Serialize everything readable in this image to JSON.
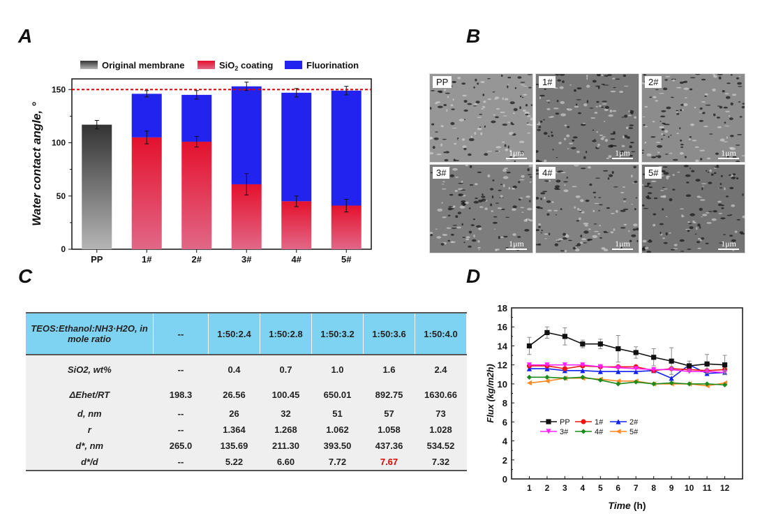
{
  "panels": {
    "a": "A",
    "b": "B",
    "c": "C",
    "d": "D"
  },
  "chart_data": [
    {
      "type": "bar",
      "stacked": true,
      "title": "",
      "xlabel": "",
      "ylabel": "Water contact angle, °",
      "ylim": [
        0,
        160
      ],
      "yticks": [
        0,
        50,
        100,
        150
      ],
      "categories": [
        "PP",
        "1#",
        "2#",
        "3#",
        "4#",
        "5#"
      ],
      "legend": [
        {
          "name": "Original membrane",
          "color": "#555555"
        },
        {
          "name": "SiO2 coating",
          "color": "#e8203a"
        },
        {
          "name": "Fluorination",
          "color": "#2222ee"
        }
      ],
      "legend_position": "top",
      "reference_line": {
        "value": 150,
        "color": "#e00000",
        "style": "dashed"
      },
      "series": [
        {
          "name": "Original membrane",
          "values": [
            117,
            null,
            null,
            null,
            null,
            null
          ],
          "errors": [
            4,
            null,
            null,
            null,
            null,
            null
          ]
        },
        {
          "name": "SiO2 coating",
          "values": [
            null,
            105,
            101,
            61,
            45,
            41
          ],
          "errors": [
            null,
            6,
            5,
            10,
            5,
            6
          ]
        },
        {
          "name": "Fluorination",
          "totals": [
            null,
            146,
            145,
            153,
            147,
            149
          ],
          "errors": [
            null,
            3,
            4,
            4,
            4,
            4
          ]
        }
      ]
    },
    {
      "type": "line",
      "title": "",
      "xlabel": "Time (h)",
      "ylabel": "Flux (kg/m2h)",
      "xlim": [
        0,
        13
      ],
      "ylim": [
        0,
        18
      ],
      "x": [
        1,
        2,
        3,
        4,
        5,
        6,
        7,
        8,
        9,
        10,
        11,
        12
      ],
      "xticks": [
        1,
        2,
        3,
        4,
        5,
        6,
        7,
        8,
        9,
        10,
        11,
        12
      ],
      "yticks": [
        0,
        2,
        4,
        6,
        8,
        10,
        12,
        14,
        16,
        18
      ],
      "legend_position": "center-left",
      "series": [
        {
          "name": "PP",
          "color": "#111111",
          "marker": "square",
          "values": [
            14.0,
            15.4,
            15.0,
            14.2,
            14.2,
            13.7,
            13.3,
            12.8,
            12.4,
            11.9,
            12.1,
            12.0
          ],
          "errors": [
            0.9,
            0.6,
            0.9,
            0.4,
            0.5,
            1.4,
            0.6,
            0.9,
            1.4,
            0.5,
            1.0,
            1.0
          ]
        },
        {
          "name": "1#",
          "color": "#ee1111",
          "marker": "circle",
          "values": [
            11.9,
            11.9,
            11.6,
            11.9,
            11.8,
            11.8,
            11.8,
            11.4,
            11.6,
            11.5,
            11.4,
            11.5
          ]
        },
        {
          "name": "2#",
          "color": "#1122ee",
          "marker": "triangle-up",
          "values": [
            11.6,
            11.6,
            11.4,
            11.4,
            11.3,
            11.3,
            11.3,
            11.4,
            10.6,
            12.0,
            11.1,
            11.2
          ]
        },
        {
          "name": "3#",
          "color": "#ff22ff",
          "marker": "triangle-down",
          "values": [
            12.0,
            12.0,
            12.0,
            12.0,
            11.8,
            11.7,
            11.6,
            11.5,
            11.5,
            11.3,
            11.3,
            11.2
          ]
        },
        {
          "name": "4#",
          "color": "#1a8a1a",
          "marker": "diamond",
          "values": [
            10.7,
            10.7,
            10.6,
            10.7,
            10.4,
            10.0,
            10.2,
            10.0,
            10.1,
            10.0,
            10.0,
            9.9
          ]
        },
        {
          "name": "5#",
          "color": "#ff8822",
          "marker": "left-triangle",
          "values": [
            10.1,
            10.3,
            10.6,
            10.6,
            10.5,
            10.3,
            10.3,
            10.0,
            10.0,
            10.0,
            9.8,
            10.1
          ]
        }
      ]
    }
  ],
  "sem": {
    "tiles": [
      {
        "label": "PP",
        "scale": "1μm"
      },
      {
        "label": "1#",
        "scale": "1μm"
      },
      {
        "label": "2#",
        "scale": "1μm"
      },
      {
        "label": "3#",
        "scale": "1μm"
      },
      {
        "label": "4#",
        "scale": "1μm"
      },
      {
        "label": "5#",
        "scale": "1μm"
      }
    ]
  },
  "table": {
    "header": [
      "TEOS:Ethanol:NH3·H2O, in mole ratio",
      "--",
      "1:50:2.4",
      "1:50:2.8",
      "1:50:3.2",
      "1:50:3.6",
      "1:50:4.0"
    ],
    "rows": [
      {
        "label": "SiO2, wt%",
        "cells": [
          "--",
          "0.4",
          "0.7",
          "1.0",
          "1.6",
          "2.4"
        ]
      },
      {
        "label": "ΔEhet/RT",
        "cells": [
          "198.3",
          "26.56",
          "100.45",
          "650.01",
          "892.75",
          "1630.66"
        ]
      },
      {
        "label": "d, nm",
        "cells": [
          "--",
          "26",
          "32",
          "51",
          "57",
          "73"
        ]
      },
      {
        "label": "r",
        "cells": [
          "--",
          "1.364",
          "1.268",
          "1.062",
          "1.058",
          "1.028"
        ]
      },
      {
        "label": "d*, nm",
        "cells": [
          "265.0",
          "135.69",
          "211.30",
          "393.50",
          "437.36",
          "534.52"
        ]
      },
      {
        "label": "d*/d",
        "cells": [
          "--",
          "5.22",
          "6.60",
          "7.72",
          "7.67",
          "7.32"
        ],
        "highlight_index": 3,
        "highlight_color": "#e00000"
      }
    ]
  }
}
